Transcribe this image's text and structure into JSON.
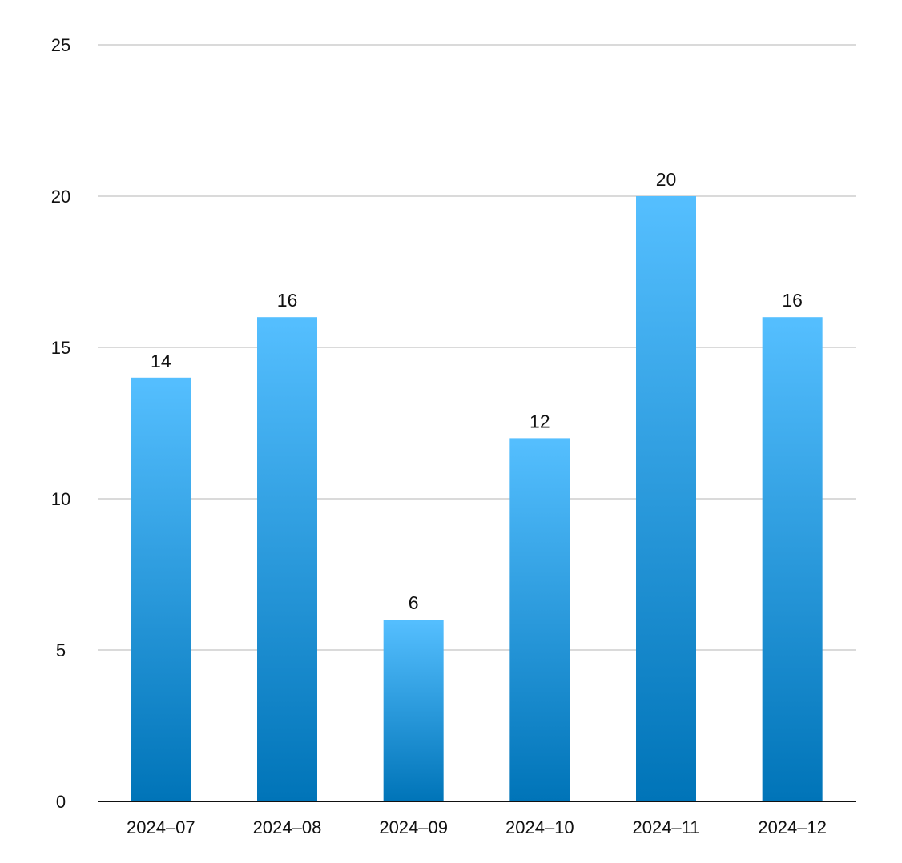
{
  "chart_data": {
    "type": "bar",
    "title": "",
    "xlabel": "",
    "ylabel": "",
    "categories": [
      "2024–07",
      "2024–08",
      "2024–09",
      "2024–10",
      "2024–11",
      "2024–12"
    ],
    "values": [
      14,
      16,
      6,
      12,
      20,
      16
    ],
    "ylim": [
      0,
      25
    ],
    "yticks": [
      0,
      5,
      10,
      15,
      20,
      25
    ],
    "grid": true,
    "legend": "none",
    "data_labels": true,
    "colors": {
      "bar_top": "#55bfff",
      "bar_bottom": "#0074b8"
    }
  }
}
